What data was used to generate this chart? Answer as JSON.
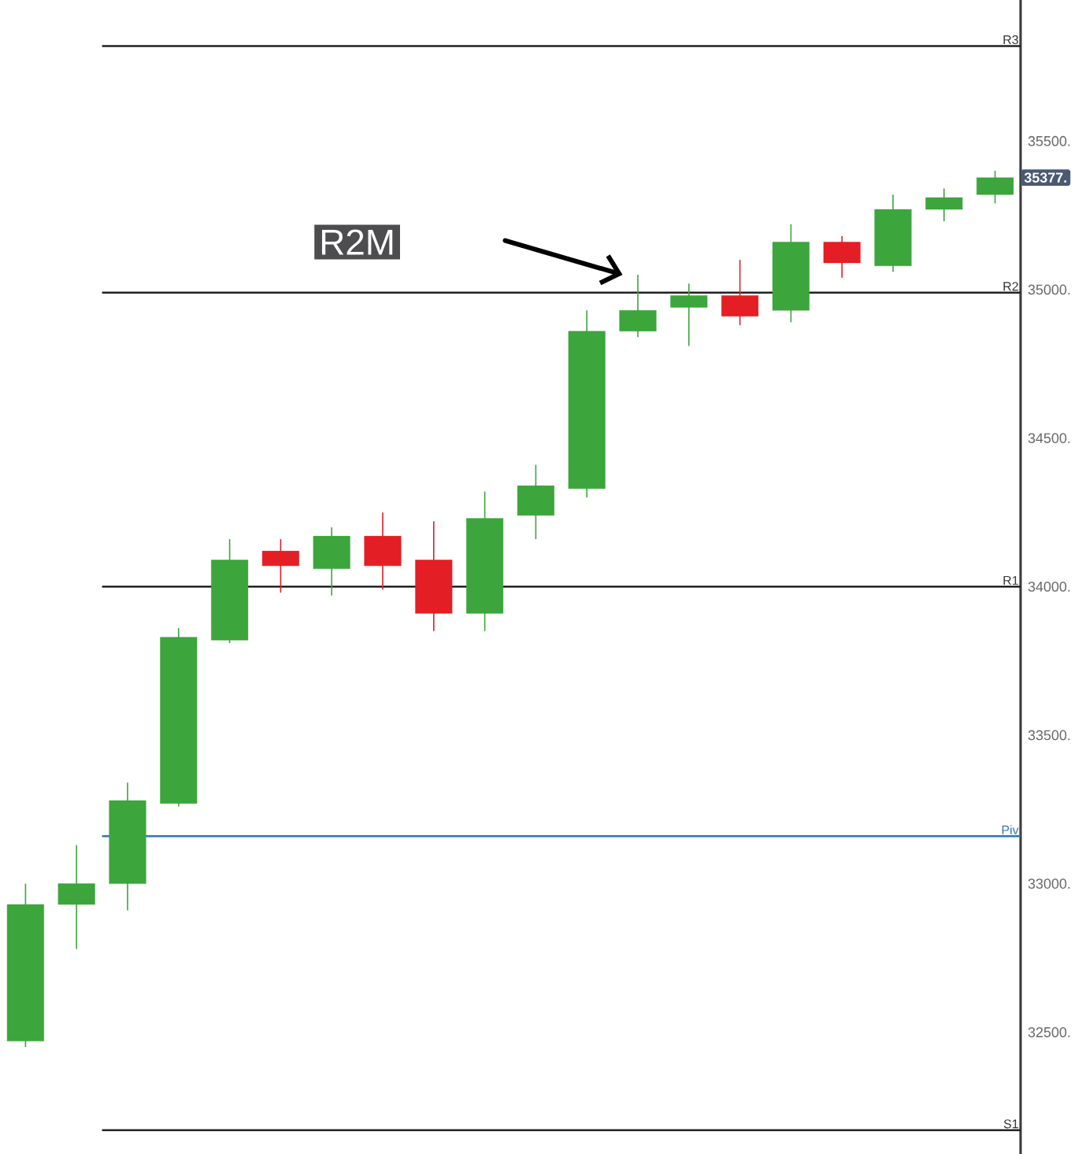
{
  "chart_data": {
    "type": "candlestick",
    "categories": [
      null,
      null,
      null,
      null,
      null,
      null,
      null,
      null,
      null,
      null,
      null,
      null,
      null,
      null,
      null,
      null,
      null,
      null,
      null,
      null
    ],
    "ohlc": [
      [
        32470,
        33000,
        32450,
        32930
      ],
      [
        32930,
        33130,
        32780,
        33000
      ],
      [
        33000,
        33340,
        32910,
        33280
      ],
      [
        33270,
        33860,
        33260,
        33830
      ],
      [
        33820,
        34160,
        33810,
        34090
      ],
      [
        34120,
        34160,
        33980,
        34070
      ],
      [
        34060,
        34200,
        33970,
        34170
      ],
      [
        34170,
        34250,
        33990,
        34070
      ],
      [
        34090,
        34220,
        33850,
        33910
      ],
      [
        33910,
        34320,
        33850,
        34230
      ],
      [
        34240,
        34410,
        34160,
        34340
      ],
      [
        34330,
        34930,
        34300,
        34860
      ],
      [
        34860,
        35050,
        34840,
        34930
      ],
      [
        34940,
        35020,
        34810,
        34980
      ],
      [
        34980,
        35100,
        34880,
        34910
      ],
      [
        34930,
        35220,
        34890,
        35160
      ],
      [
        35160,
        35180,
        35040,
        35090
      ],
      [
        35080,
        35320,
        35060,
        35270
      ],
      [
        35270,
        35340,
        35230,
        35310
      ],
      [
        35320,
        35400,
        35290,
        35377
      ]
    ],
    "colors": [
      "#3ca53c",
      "#3ca53c",
      "#3ca53c",
      "#3ca53c",
      "#3ca53c",
      "#e31e24",
      "#3ca53c",
      "#e31e24",
      "#e31e24",
      "#3ca53c",
      "#3ca53c",
      "#3ca53c",
      "#3ca53c",
      "#3ca53c",
      "#e31e24",
      "#3ca53c",
      "#e31e24",
      "#3ca53c",
      "#3ca53c",
      "#3ca53c"
    ],
    "ylim": [
      32090,
      35975
    ],
    "yticks": [
      {
        "value": 32500,
        "label": "32500."
      },
      {
        "value": 33000,
        "label": "33000."
      },
      {
        "value": 33500,
        "label": "33500."
      },
      {
        "value": 34000,
        "label": "34000."
      },
      {
        "value": 34500,
        "label": "34500."
      },
      {
        "value": 35000,
        "label": "35000."
      },
      {
        "value": 35500,
        "label": "35500."
      }
    ],
    "tick_labels": "y",
    "grid": false,
    "ref_lines": [
      {
        "axis": "y",
        "value": 35820,
        "label": "R3",
        "color": "#222222"
      },
      {
        "axis": "y",
        "value": 34990,
        "label": "R2",
        "color": "#222222"
      },
      {
        "axis": "y",
        "value": 34000,
        "label": "R1",
        "color": "#222222"
      },
      {
        "axis": "y",
        "value": 33160,
        "label": "Piv",
        "color": "#2e75b6"
      },
      {
        "axis": "y",
        "value": 32170,
        "label": "S1",
        "color": "#222222"
      }
    ],
    "annotations": [
      "R2M",
      {
        "text": "35377.",
        "y": 35377
      }
    ]
  }
}
